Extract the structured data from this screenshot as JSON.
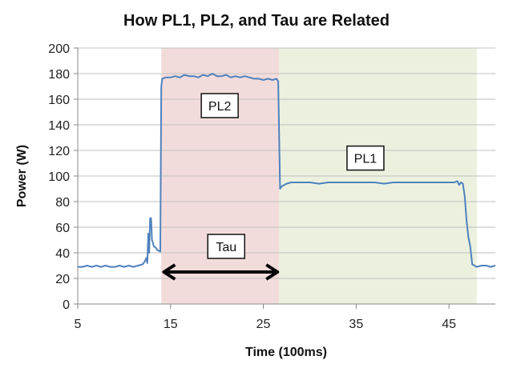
{
  "chart_data": {
    "type": "line",
    "title": "How PL1, PL2, and Tau are Related",
    "xlabel": "Time (100ms)",
    "ylabel": "Power (W)",
    "xlim": [
      5,
      50
    ],
    "ylim": [
      0,
      200
    ],
    "x_ticks": [
      5,
      15,
      25,
      35,
      45
    ],
    "y_ticks": [
      0,
      20,
      40,
      60,
      80,
      100,
      120,
      140,
      160,
      180,
      200
    ],
    "grid": "horizontal",
    "legend": "none",
    "line_color": "#4f81bd",
    "regions": [
      {
        "name": "PL2 region",
        "x_start": 14.0,
        "x_end": 26.7,
        "color": "#f2dcdb"
      },
      {
        "name": "PL1 region",
        "x_start": 26.7,
        "x_end": 48.0,
        "color": "#ebf1de"
      }
    ],
    "annotations": [
      {
        "text": "PL2",
        "x": 20.3,
        "y": 155
      },
      {
        "text": "PL1",
        "x": 36.0,
        "y": 114
      },
      {
        "text": "Tau",
        "x": 21.0,
        "y": 45
      }
    ],
    "tau_arrow": {
      "x_start": 14.1,
      "x_end": 26.7,
      "y": 25
    },
    "series": [
      {
        "name": "Power",
        "x": [
          5,
          5.5,
          6,
          6.5,
          7,
          7.5,
          8,
          8.5,
          9,
          9.5,
          10,
          10.5,
          11,
          11.5,
          12,
          12.2,
          12.4,
          12.5,
          12.6,
          12.7,
          12.8,
          12.9,
          13.0,
          13.1,
          13.2,
          13.4,
          13.6,
          13.9,
          14.0,
          14.1,
          14.5,
          15,
          15.5,
          16,
          16.5,
          17,
          17.5,
          18,
          18.5,
          19,
          19.5,
          20,
          20.5,
          21,
          21.5,
          22,
          22.5,
          23,
          23.5,
          24,
          24.5,
          25,
          25.5,
          26,
          26.4,
          26.6,
          26.8,
          27.0,
          27.5,
          28,
          29,
          30,
          31,
          32,
          33,
          34,
          35,
          36,
          37,
          38,
          39,
          40,
          41,
          42,
          43,
          44,
          45,
          45.6,
          45.9,
          46.1,
          46.3,
          46.5,
          46.7,
          46.9,
          47.1,
          47.3,
          47.5,
          48,
          48.5,
          49,
          49.5,
          50
        ],
        "y": [
          29,
          29,
          30,
          29,
          30,
          29,
          30,
          29,
          29,
          30,
          29,
          30,
          29,
          30,
          31,
          33,
          36,
          32,
          55,
          40,
          67,
          67,
          50,
          48,
          45,
          44,
          42,
          41,
          170,
          176,
          177,
          177,
          178,
          177,
          179,
          178,
          178,
          177,
          179,
          178,
          180,
          178,
          178,
          179,
          177,
          178,
          177,
          178,
          177,
          176,
          176,
          175,
          176,
          175,
          176,
          174,
          90,
          92,
          94,
          95,
          95,
          95,
          94,
          95,
          95,
          95,
          95,
          95,
          95,
          94,
          95,
          95,
          95,
          95,
          95,
          95,
          95,
          95,
          96,
          93,
          95,
          94,
          84,
          65,
          52,
          45,
          31,
          29,
          30,
          30,
          29,
          30
        ]
      }
    ]
  }
}
